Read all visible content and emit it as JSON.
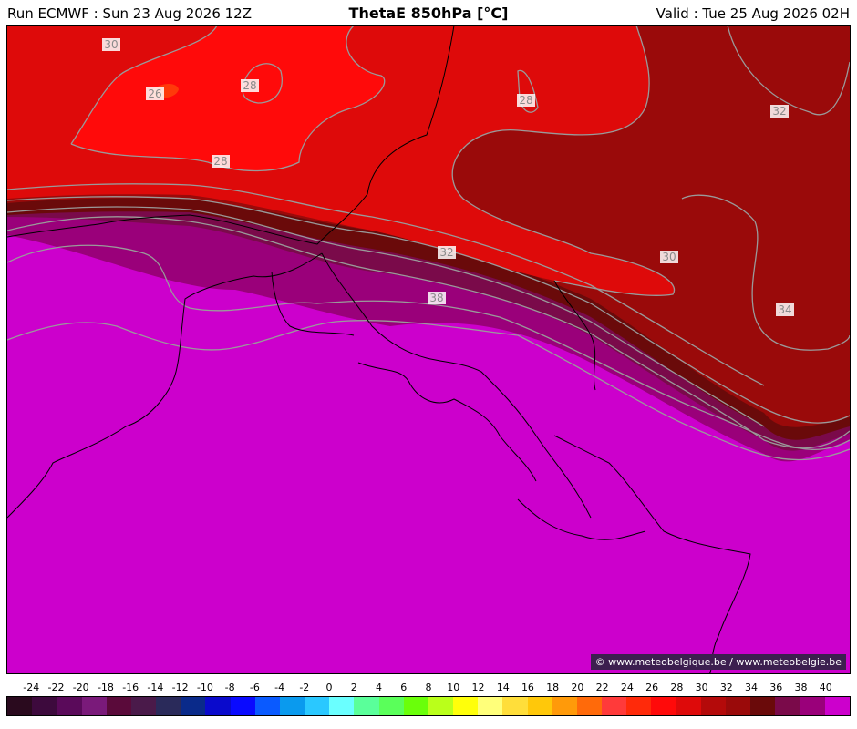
{
  "header": {
    "run": "Run ECMWF : Sun 23 Aug 2026 12Z",
    "title": "ThetaE 850hPa [°C]",
    "valid": "Valid : Tue 25 Aug 2026 02H"
  },
  "credit": "© www.meteobelgique.be / www.meteobelgie.be",
  "contour_labels": [
    {
      "id": "l30a",
      "text": "30"
    },
    {
      "id": "l26",
      "text": "26"
    },
    {
      "id": "l28a",
      "text": "28"
    },
    {
      "id": "l28b",
      "text": "28"
    },
    {
      "id": "l28c",
      "text": "28"
    },
    {
      "id": "l32a",
      "text": "32"
    },
    {
      "id": "l32b",
      "text": "32"
    },
    {
      "id": "l30b",
      "text": "30"
    },
    {
      "id": "l34",
      "text": "34"
    },
    {
      "id": "l38",
      "text": "38"
    }
  ],
  "legend": {
    "ticks": [
      "-24",
      "-22",
      "-20",
      "-18",
      "-16",
      "-14",
      "-12",
      "-10",
      "-8",
      "-6",
      "-4",
      "-2",
      "0",
      "2",
      "4",
      "6",
      "8",
      "10",
      "12",
      "14",
      "16",
      "18",
      "20",
      "22",
      "24",
      "26",
      "28",
      "30",
      "32",
      "34",
      "36",
      "38",
      "40"
    ],
    "colors": [
      "#2a0a1e",
      "#3d0a3d",
      "#5a0a5a",
      "#7a1a7a",
      "#5a0a3a",
      "#4a1a4a",
      "#2a2a5a",
      "#0a2a8a",
      "#0a0acc",
      "#0a0aff",
      "#0a5aff",
      "#0a9aee",
      "#2ac8ff",
      "#6affff",
      "#5aff9a",
      "#5aff5a",
      "#6aff0a",
      "#baff1a",
      "#ffff0a",
      "#ffff7a",
      "#ffde3a",
      "#ffc80a",
      "#ff9a0a",
      "#ff6a0a",
      "#ff3a3a",
      "#ff2a0a",
      "#ff0a0a",
      "#de0a0a",
      "#b40a0a",
      "#9a0a0a",
      "#6a0a0a",
      "#7a0a4a",
      "#9a007a",
      "#cc00cc"
    ]
  }
}
